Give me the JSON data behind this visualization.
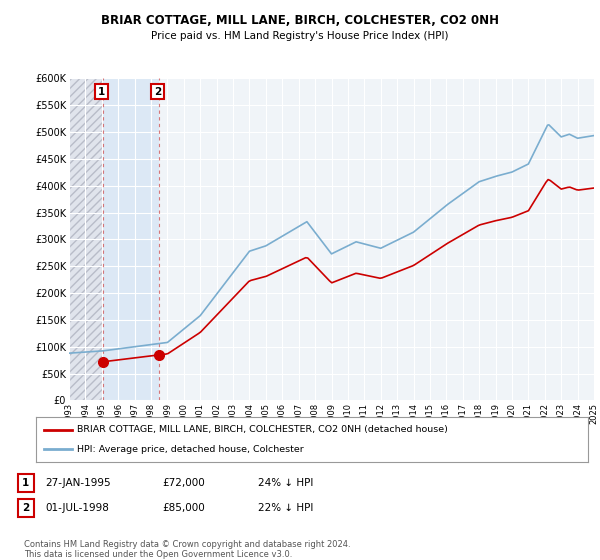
{
  "title": "BRIAR COTTAGE, MILL LANE, BIRCH, COLCHESTER, CO2 0NH",
  "subtitle": "Price paid vs. HM Land Registry's House Price Index (HPI)",
  "ylim": [
    0,
    600000
  ],
  "yticks": [
    0,
    50000,
    100000,
    150000,
    200000,
    250000,
    300000,
    350000,
    400000,
    450000,
    500000,
    550000,
    600000
  ],
  "ytick_labels": [
    "£0",
    "£50K",
    "£100K",
    "£150K",
    "£200K",
    "£250K",
    "£300K",
    "£350K",
    "£400K",
    "£450K",
    "£500K",
    "£550K",
    "£600K"
  ],
  "sale1_date": 1995.08,
  "sale1_price": 72000,
  "sale1_label": "1",
  "sale2_date": 1998.5,
  "sale2_price": 85000,
  "sale2_label": "2",
  "legend_property": "BRIAR COTTAGE, MILL LANE, BIRCH, COLCHESTER, CO2 0NH (detached house)",
  "legend_hpi": "HPI: Average price, detached house, Colchester",
  "footnote3": "Contains HM Land Registry data © Crown copyright and database right 2024.",
  "footnote4": "This data is licensed under the Open Government Licence v3.0.",
  "property_color": "#cc0000",
  "hpi_color": "#7aadcf",
  "background_plot": "#f0f4f8",
  "background_fig": "#ffffff",
  "hatch_region_end": 1995.08,
  "blue_region_start": 1995.08,
  "blue_region_end": 1998.5,
  "blue_fill_color": "#dce8f5",
  "hatch_fill_color": "#d8dce4",
  "xlim_start": 1993,
  "xlim_end": 2025
}
